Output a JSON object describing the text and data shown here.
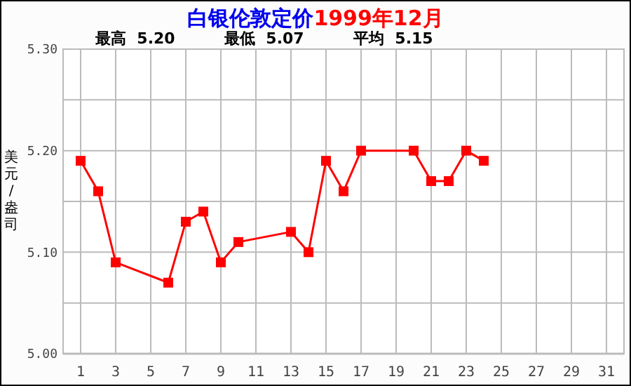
{
  "chart_data": {
    "type": "line",
    "title": "白银伦敦定价",
    "subtitle": "1999年12月",
    "ylabel": "美元/盎司",
    "annotations": [
      "最高  5.20",
      "最低  5.07",
      "平均  5.15"
    ],
    "x": [
      1,
      2,
      3,
      6,
      7,
      8,
      9,
      10,
      13,
      14,
      15,
      16,
      17,
      20,
      21,
      22,
      23,
      24
    ],
    "series": [
      {
        "color": "#ff0000",
        "values": [
          5.19,
          5.16,
          5.09,
          5.07,
          5.13,
          5.14,
          5.09,
          5.11,
          5.12,
          5.1,
          5.19,
          5.16,
          5.2,
          5.2,
          5.17,
          5.17,
          5.2,
          5.19
        ]
      }
    ],
    "xlim": [
      0,
      32
    ],
    "xticks": [
      1,
      3,
      5,
      7,
      9,
      11,
      13,
      15,
      17,
      19,
      21,
      23,
      25,
      27,
      29,
      31
    ],
    "ylim": [
      5.0,
      5.3
    ],
    "yticks": [
      {
        "value": 5.0,
        "label": "5.00"
      },
      {
        "value": 5.05,
        "label": null
      },
      {
        "value": 5.1,
        "label": "5.10"
      },
      {
        "value": 5.15,
        "label": null
      },
      {
        "value": 5.2,
        "label": "5.20"
      },
      {
        "value": 5.25,
        "label": null
      },
      {
        "value": 5.3,
        "label": "5.30"
      }
    ],
    "grid": true,
    "marker": "square",
    "line_style": "solid"
  }
}
